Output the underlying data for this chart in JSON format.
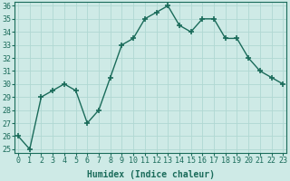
{
  "x": [
    0,
    1,
    2,
    3,
    4,
    5,
    6,
    7,
    8,
    9,
    10,
    11,
    12,
    13,
    14,
    15,
    16,
    17,
    18,
    19,
    20,
    21,
    22,
    23
  ],
  "y": [
    26,
    25,
    29,
    29.5,
    30,
    29.5,
    27,
    28,
    30.5,
    33,
    33.5,
    35,
    35.5,
    36,
    34.5,
    34,
    35,
    35,
    33.5,
    33.5,
    32,
    31,
    30.5,
    30
  ],
  "line_color": "#1a6b5a",
  "marker": "+",
  "marker_size": 5,
  "marker_linewidth": 1.2,
  "background_color": "#ceeae6",
  "grid_color": "#b0d8d2",
  "xlabel": "Humidex (Indice chaleur)",
  "ylim_min": 25,
  "ylim_max": 36,
  "xlim_min": 0,
  "xlim_max": 23,
  "yticks": [
    25,
    26,
    27,
    28,
    29,
    30,
    31,
    32,
    33,
    34,
    35,
    36
  ],
  "xticks": [
    0,
    1,
    2,
    3,
    4,
    5,
    6,
    7,
    8,
    9,
    10,
    11,
    12,
    13,
    14,
    15,
    16,
    17,
    18,
    19,
    20,
    21,
    22,
    23
  ],
  "tick_color": "#1a6b5a",
  "label_fontsize": 7,
  "tick_fontsize": 6,
  "line_width": 1.0
}
